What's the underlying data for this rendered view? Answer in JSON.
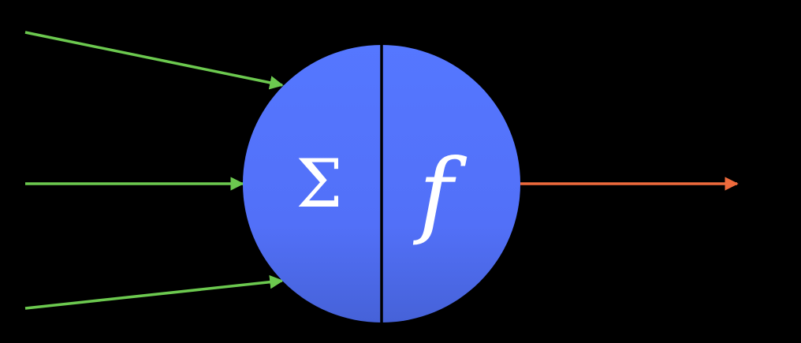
{
  "colors": {
    "background": "#000000",
    "neuron_top": "#5577ff",
    "neuron_bottom": "#4662d8",
    "divider": "#000000",
    "input_arrow": "#6cc94f",
    "output_arrow": "#ee6a3c",
    "symbol": "#ffffff"
  },
  "neuron": {
    "sum_symbol": "Σ",
    "activation_symbol": "f"
  },
  "inputs": [
    {
      "name": "input-arrow-top"
    },
    {
      "name": "input-arrow-middle"
    },
    {
      "name": "input-arrow-bottom"
    }
  ],
  "output": {
    "name": "output-arrow"
  }
}
